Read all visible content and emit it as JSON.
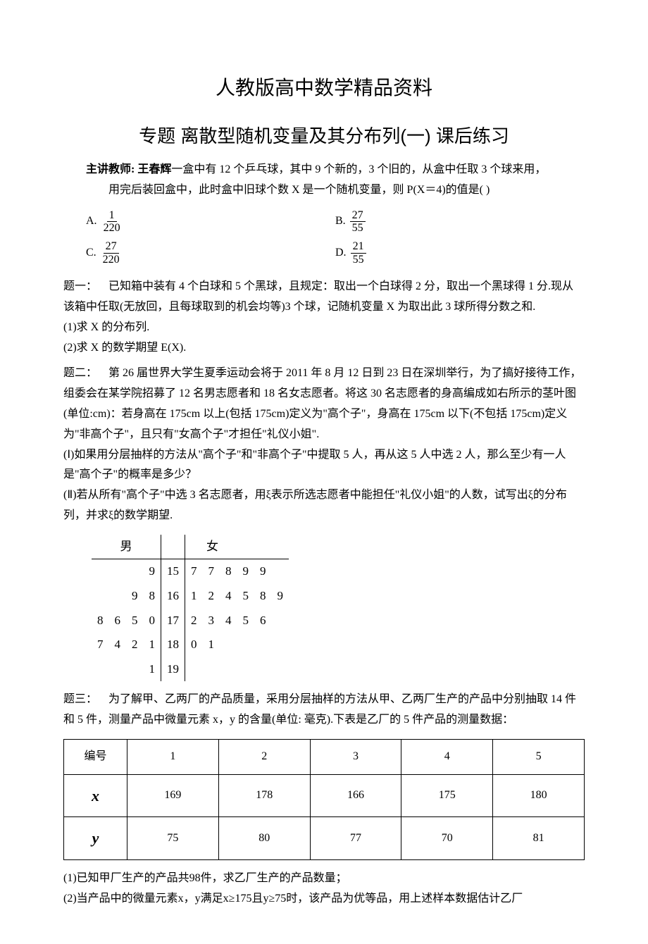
{
  "main_title": "人教版高中数学精品资料",
  "sub_title": "专题  离散型随机变量及其分布列(一)  课后练习",
  "instructor": {
    "label": "主讲教师: 王春辉",
    "body_line1": "一盒中有 12 个乒乓球，其中 9 个新的，3 个旧的，从盒中任取 3 个球来用，",
    "body_line2": "用完后装回盒中，此时盒中旧球个数 X 是一个随机变量，则 P(X＝4)的值是(        )"
  },
  "options": {
    "A": {
      "num": "1",
      "den": "220"
    },
    "B": {
      "num": "27",
      "den": "55"
    },
    "C": {
      "num": "27",
      "den": "220"
    },
    "D": {
      "num": "21",
      "den": "55"
    }
  },
  "q1": {
    "label": "题一：",
    "body1": "已知箱中装有 4 个白球和 5 个黑球，且规定：取出一个白球得 2 分，取出一个黑球得 1 分.现从该箱中任取(无放回，且每球取到的机会均等)3 个球，记随机变量 X 为取出此 3 球所得分数之和.",
    "sub1": "(1)求 X 的分布列.",
    "sub2": "(2)求 X 的数学期望 E(X)."
  },
  "q2": {
    "label": "题二：",
    "body1": "第 26 届世界大学生夏季运动会将于 2011 年 8 月 12 日到 23 日在深圳举行，为了搞好接待工作，组委会在某学院招募了 12 名男志愿者和 18 名女志愿者。将这 30 名志愿者的身高编成如右所示的茎叶图(单位:cm)：若身高在 175cm 以上(包括 175cm)定义为\"高个子\"，身高在 175cm 以下(不包括 175cm)定义为\"非高个子\"，且只有\"女高个子\"才担任\"礼仪小姐\".",
    "sub1": "(Ⅰ)如果用分层抽样的方法从\"高个子\"和\"非高个子\"中提取 5 人，再从这 5 人中选 2 人，那么至少有一人是\"高个子\"的概率是多少？",
    "sub2": "(Ⅱ)若从所有\"高个子\"中选 3 名志愿者，用ξ表示所选志愿者中能担任\"礼仪小姐\"的人数，试写出ξ的分布列，并求ξ的数学期望."
  },
  "stemleaf": {
    "headers": {
      "left": "男",
      "right": "女"
    },
    "rows": [
      {
        "left": [
          "",
          "",
          "",
          "9"
        ],
        "stem": "15",
        "right": [
          "7",
          "7",
          "8",
          "9",
          "9",
          ""
        ]
      },
      {
        "left": [
          "",
          "",
          "9",
          "8"
        ],
        "stem": "16",
        "right": [
          "1",
          "2",
          "4",
          "5",
          "8",
          "9"
        ]
      },
      {
        "left": [
          "8",
          "6",
          "5",
          "0"
        ],
        "stem": "17",
        "right": [
          "2",
          "3",
          "4",
          "5",
          "6",
          ""
        ]
      },
      {
        "left": [
          "7",
          "4",
          "2",
          "1"
        ],
        "stem": "18",
        "right": [
          "0",
          "1",
          "",
          "",
          "",
          ""
        ]
      },
      {
        "left": [
          "",
          "",
          "",
          "1"
        ],
        "stem": "19",
        "right": [
          "",
          "",
          "",
          "",
          "",
          ""
        ]
      }
    ]
  },
  "q3": {
    "label": "题三：",
    "body1": "为了解甲、乙两厂的产品质量，采用分层抽样的方法从甲、乙两厂生产的产品中分别抽取 14 件和 5 件，测量产品中微量元素 x，y 的含量(单位: 毫克).下表是乙厂的 5 件产品的测量数据："
  },
  "data_table": {
    "header_label": "编号",
    "cols": [
      "1",
      "2",
      "3",
      "4",
      "5"
    ],
    "row_x_label": "x",
    "row_x": [
      "169",
      "178",
      "166",
      "175",
      "180"
    ],
    "row_y_label": "y",
    "row_y": [
      "75",
      "80",
      "77",
      "70",
      "81"
    ]
  },
  "tail": {
    "sub1": "(1)已知甲厂生产的产品共98件，求乙厂生产的产品数量；",
    "sub2": "(2)当产品中的微量元素x，y满足x≥175且y≥75时，该产品为优等品，用上述样本数据估计乙厂"
  }
}
